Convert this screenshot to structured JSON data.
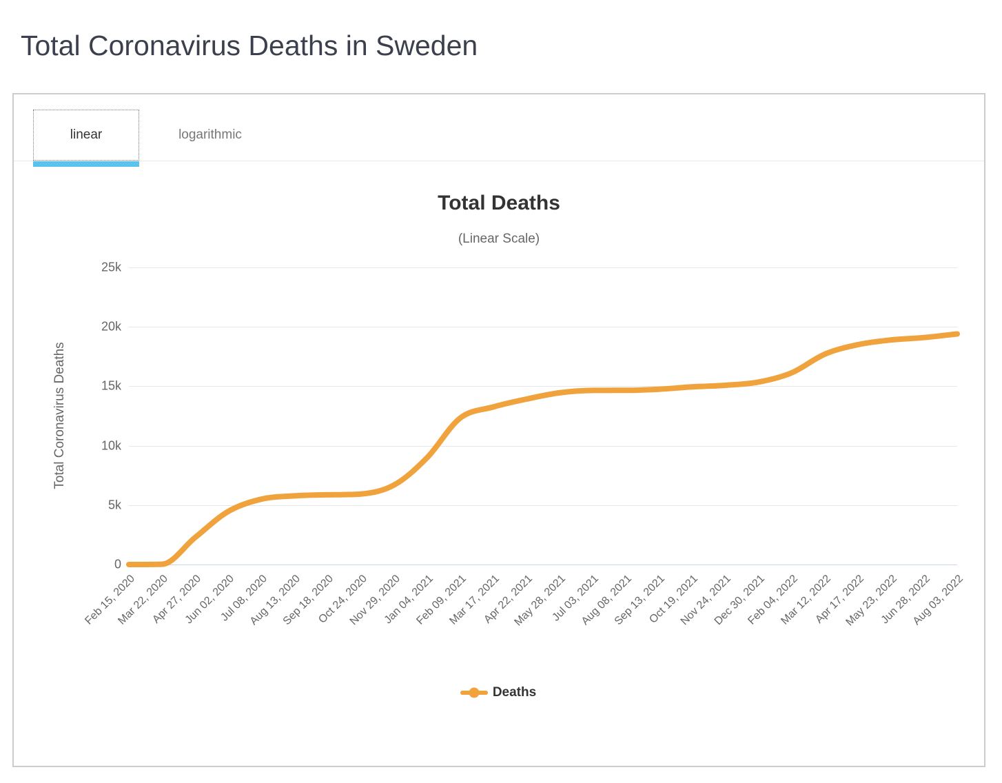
{
  "page_title": "Total Coronavirus Deaths in Sweden",
  "tabs": {
    "linear": "linear",
    "logarithmic": "logarithmic",
    "active": "linear"
  },
  "colors": {
    "series": "#f0a23c",
    "tab_underline": "#5bc2ee",
    "grid_line": "#e6e6e6",
    "axis_line": "#ccd6eb",
    "title_text": "#333333",
    "muted_text": "#666666",
    "heading_text": "#3b404c",
    "card_border": "#cccccc"
  },
  "chart_data": {
    "type": "line",
    "title": "Total Deaths",
    "subtitle": "(Linear Scale)",
    "xlabel": "",
    "ylabel": "Total Coronavirus Deaths",
    "ylim": [
      0,
      25000
    ],
    "ytick_values": [
      0,
      5000,
      10000,
      15000,
      20000,
      25000
    ],
    "ytick_labels": [
      "0",
      "5k",
      "10k",
      "15k",
      "20k",
      "25k"
    ],
    "grid": true,
    "legend_position": "bottom-center",
    "categories": [
      "Feb 15, 2020",
      "Mar 22, 2020",
      "Apr 27, 2020",
      "Jun 02, 2020",
      "Jul 08, 2020",
      "Aug 13, 2020",
      "Sep 18, 2020",
      "Oct 24, 2020",
      "Nov 29, 2020",
      "Jan 04, 2021",
      "Feb 09, 2021",
      "Mar 17, 2021",
      "Apr 22, 2021",
      "May 28, 2021",
      "Jul 03, 2021",
      "Aug 08, 2021",
      "Sep 13, 2021",
      "Oct 19, 2021",
      "Nov 24, 2021",
      "Dec 30, 2021",
      "Feb 04, 2022",
      "Mar 12, 2022",
      "Apr 17, 2022",
      "May 23, 2022",
      "Jun 28, 2022",
      "Aug 03, 2022"
    ],
    "series": [
      {
        "name": "Deaths",
        "color": "#f0a23c",
        "values": [
          0,
          21,
          2274,
          4468,
          5500,
          5776,
          5865,
          5933,
          6681,
          8985,
          12326,
          13262,
          13923,
          14451,
          14651,
          14660,
          14751,
          14950,
          15082,
          15355,
          16130,
          17700,
          18500,
          18900,
          19100,
          19400
        ]
      }
    ]
  }
}
